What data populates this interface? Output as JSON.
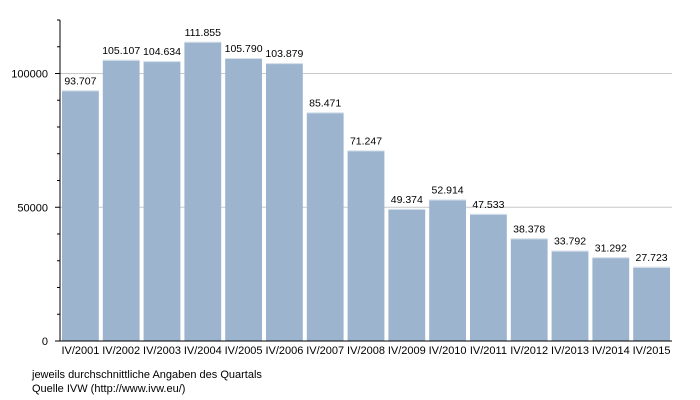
{
  "chart_data": {
    "type": "bar",
    "categories": [
      "IV/2001",
      "IV/2002",
      "IV/2003",
      "IV/2004",
      "IV/2005",
      "IV/2006",
      "IV/2007",
      "IV/2008",
      "IV/2009",
      "IV/2010",
      "IV/2011",
      "IV/2012",
      "IV/2013",
      "IV/2014",
      "IV/2015"
    ],
    "values": [
      93707,
      105107,
      104634,
      111855,
      105790,
      103879,
      85471,
      71247,
      49374,
      52914,
      47533,
      38378,
      33792,
      31292,
      27723
    ],
    "data_labels": [
      "93.707",
      "105.107",
      "104.634",
      "111.855",
      "105.790",
      "103.879",
      "85.471",
      "71.247",
      "49.374",
      "52.914",
      "47.533",
      "38.378",
      "33.792",
      "31.292",
      "27.723"
    ],
    "y_ticks": [
      0,
      50000,
      100000
    ],
    "y_tick_labels": [
      "0",
      "50000",
      "100000"
    ],
    "ylim": [
      0,
      120000
    ],
    "grid": true,
    "bar_color": "#9db4cf",
    "grid_color": "#c8c8c8"
  },
  "footnote": {
    "line1": "jeweils durchschnittliche Angaben des Quartals",
    "line2": "Quelle IVW (http://www.ivw.eu/)"
  }
}
